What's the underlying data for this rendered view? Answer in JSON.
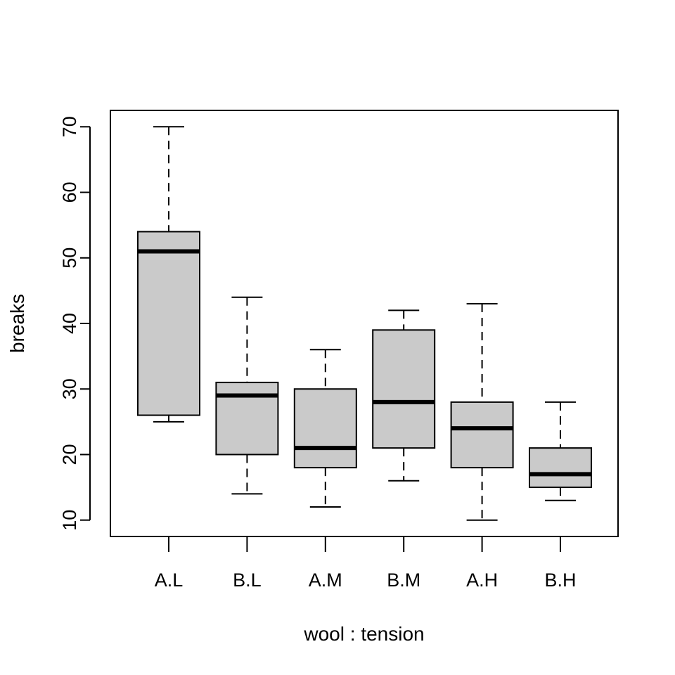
{
  "chart_data": {
    "type": "box",
    "xlabel": "wool : tension",
    "ylabel": "breaks",
    "ylim": [
      7.5,
      72.5
    ],
    "yticks": [
      10,
      20,
      30,
      40,
      50,
      60,
      70
    ],
    "categories": [
      "A.L",
      "B.L",
      "A.M",
      "B.M",
      "A.H",
      "B.H"
    ],
    "boxes": [
      {
        "label": "A.L",
        "min": 25,
        "q1": 26,
        "median": 51,
        "q3": 54,
        "max": 70
      },
      {
        "label": "B.L",
        "min": 14,
        "q1": 20,
        "median": 29,
        "q3": 31,
        "max": 44
      },
      {
        "label": "A.M",
        "min": 12,
        "q1": 18,
        "median": 21,
        "q3": 30,
        "max": 36
      },
      {
        "label": "B.M",
        "min": 16,
        "q1": 21,
        "median": 28,
        "q3": 39,
        "max": 42
      },
      {
        "label": "A.H",
        "min": 10,
        "q1": 18,
        "median": 24,
        "q3": 28,
        "max": 43
      },
      {
        "label": "B.H",
        "min": 13,
        "q1": 15,
        "median": 17,
        "q3": 21,
        "max": 28
      }
    ],
    "box_fill": "#cacaca",
    "grid": false,
    "legend": "none"
  }
}
